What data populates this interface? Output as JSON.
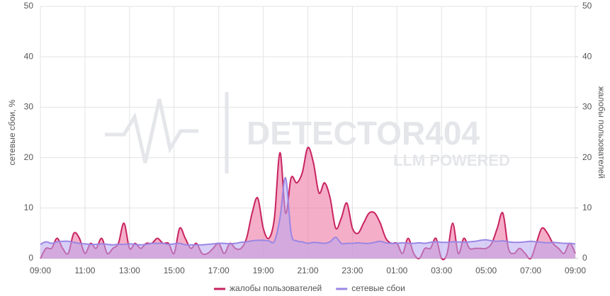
{
  "chart_data": {
    "type": "area",
    "x": [
      0,
      0.25,
      0.5,
      0.75,
      1,
      1.25,
      1.5,
      1.75,
      2,
      2.25,
      2.5,
      2.75,
      3,
      3.25,
      3.5,
      3.75,
      4,
      4.25,
      4.5,
      4.75,
      5,
      5.25,
      5.5,
      5.75,
      6,
      6.25,
      6.5,
      6.75,
      7,
      7.25,
      7.5,
      7.75,
      8,
      8.25,
      8.5,
      8.75,
      9,
      9.25,
      9.5,
      9.75,
      10,
      10.25,
      10.5,
      10.75,
      11,
      11.25,
      11.5,
      11.75,
      12,
      12.25,
      12.5,
      12.75,
      13,
      13.25,
      13.5,
      13.75,
      14,
      14.25,
      14.5,
      14.75,
      15,
      15.25,
      15.5,
      15.75,
      16,
      16.25,
      16.5,
      16.75,
      17,
      17.25,
      17.5,
      17.75,
      18,
      18.25,
      18.5,
      18.75,
      19,
      19.25,
      19.5,
      19.75,
      20,
      20.25,
      20.5,
      20.75,
      21,
      21.25,
      21.5,
      21.75,
      22,
      22.25,
      22.5,
      22.75,
      23,
      23.25,
      23.5,
      23.75,
      24
    ],
    "xlim": [
      0,
      24
    ],
    "xticks": [
      {
        "value": 0,
        "label": "09:00"
      },
      {
        "value": 2,
        "label": "11:00"
      },
      {
        "value": 4,
        "label": "13:00"
      },
      {
        "value": 6,
        "label": "15:00"
      },
      {
        "value": 8,
        "label": "17:00"
      },
      {
        "value": 10,
        "label": "19:00"
      },
      {
        "value": 12,
        "label": "21:00"
      },
      {
        "value": 14,
        "label": "23:00"
      },
      {
        "value": 16,
        "label": "01:00"
      },
      {
        "value": 18,
        "label": "03:00"
      },
      {
        "value": 20,
        "label": "05:00"
      },
      {
        "value": 22,
        "label": "07:00"
      },
      {
        "value": 24,
        "label": "09:00"
      }
    ],
    "ylabel": "сетевые сбои, %",
    "y2label": "жалобы пользователей",
    "ylim": [
      0,
      50
    ],
    "yticks": [
      0,
      10,
      20,
      30,
      40,
      50
    ],
    "y2lim": [
      0,
      50
    ],
    "y2ticks": [
      0,
      10,
      20,
      30,
      40,
      50
    ],
    "grid": true,
    "watermark": {
      "title": "DETECTOR404",
      "subtitle": "LLM POWERED"
    },
    "series": [
      {
        "name": "жалобы пользователей",
        "color": "#c8235f",
        "fill": "#ec6b9b",
        "axis": "y2",
        "values": [
          0,
          2,
          2,
          4,
          2,
          1,
          5,
          4,
          1,
          3,
          2,
          4,
          1,
          2,
          3,
          7,
          2,
          3,
          2,
          3,
          3,
          4,
          3,
          3,
          1,
          6,
          4,
          2,
          3,
          1,
          1,
          2,
          3,
          1,
          3,
          2,
          2,
          4,
          9,
          12,
          6,
          4,
          8,
          21,
          9,
          16,
          15,
          17,
          22,
          19,
          13,
          15,
          12,
          6,
          8,
          11,
          6,
          5,
          7,
          9,
          9,
          7,
          4,
          3,
          3,
          1,
          4,
          1,
          0,
          2,
          2,
          4,
          0,
          1,
          7,
          1,
          4,
          2,
          2,
          2,
          2,
          3,
          6,
          9,
          2,
          1,
          2,
          1,
          0,
          3,
          6,
          5,
          3,
          2,
          1,
          3,
          1
        ]
      },
      {
        "name": "сетевые сбои",
        "color": "#9a86e4",
        "fill": "#b8a8f0",
        "axis": "y",
        "values": [
          2.8,
          3.3,
          3,
          3.3,
          3.4,
          3.4,
          3.2,
          3,
          2.9,
          2.8,
          2.8,
          2.9,
          2.8,
          2.7,
          2.8,
          2.8,
          2.9,
          2.8,
          2.7,
          2.8,
          3,
          3,
          3,
          2.8,
          2.9,
          3,
          2.7,
          2.7,
          2.7,
          2.7,
          2.8,
          2.9,
          3,
          3,
          2.9,
          3,
          3.2,
          3.3,
          3.5,
          3.6,
          3.6,
          3.5,
          3.4,
          8,
          16,
          5,
          3.5,
          3.3,
          3,
          3.2,
          3.1,
          3,
          3.3,
          4.2,
          3,
          3,
          3,
          3.1,
          3,
          3,
          3.2,
          3.4,
          3.1,
          3,
          3,
          3.1,
          3,
          3,
          3.1,
          3,
          3.2,
          3.3,
          3.2,
          3.2,
          3.3,
          3.3,
          3.2,
          3.3,
          3.4,
          3.6,
          3.7,
          3.5,
          3.4,
          3.5,
          3.3,
          3.2,
          3.2,
          3.3,
          3.4,
          3.3,
          3.2,
          3.1,
          3.2,
          3.1,
          3,
          3,
          2.9
        ]
      }
    ],
    "legend": "bottom"
  }
}
